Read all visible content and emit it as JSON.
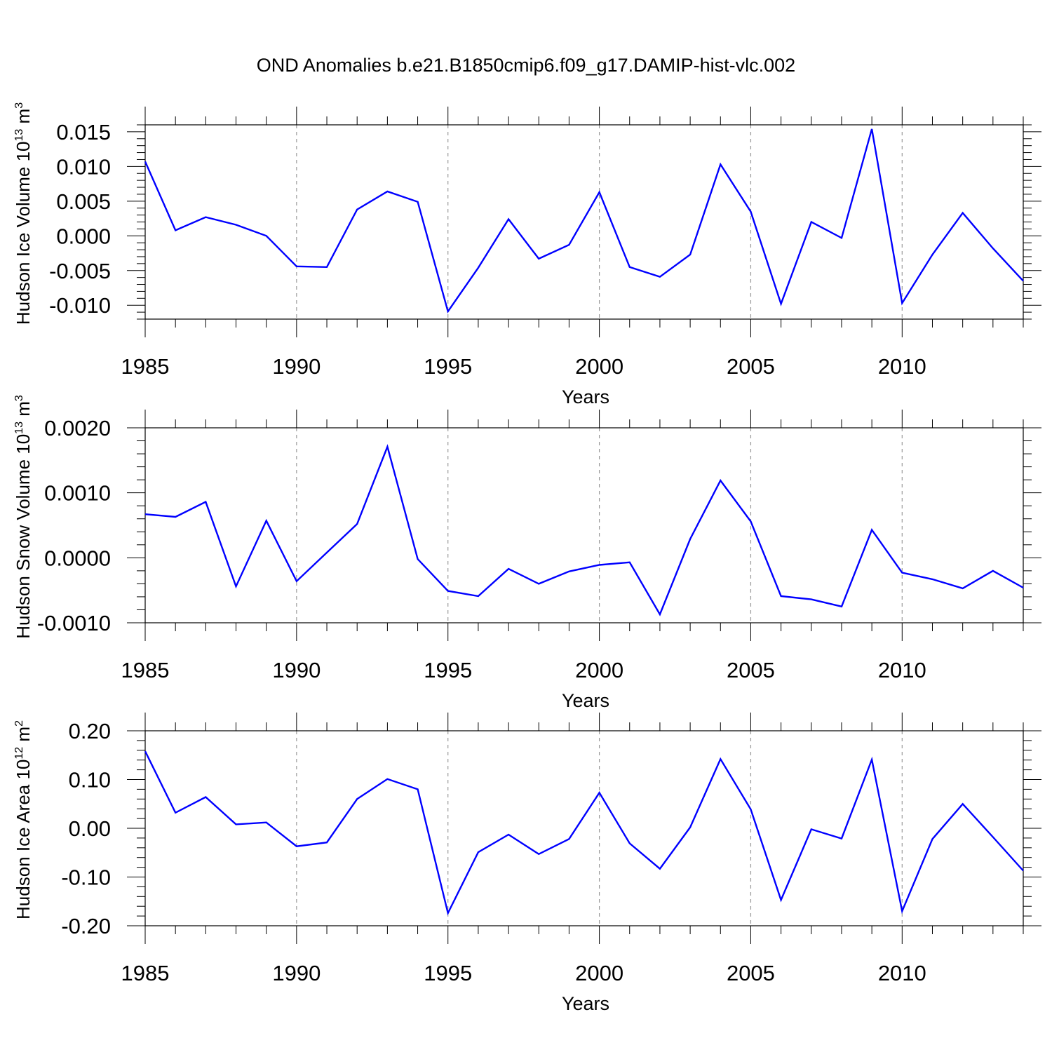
{
  "title": "OND Anomalies b.e21.B1850cmip6.f09_g17.DAMIP-hist-vlc.002",
  "colors": {
    "line": "#0000ff",
    "axis": "#000000",
    "grid": "#999999"
  },
  "chart_data": [
    {
      "type": "line",
      "xlabel": "Years",
      "ylabel": {
        "text": "Hudson Ice Volume 10",
        "sup": "13",
        "unit": " m",
        "unit_sup": "3"
      },
      "xlim": [
        1985,
        2014
      ],
      "ylim": [
        -0.012,
        0.016
      ],
      "x_ticks": [
        1985,
        1990,
        1995,
        2000,
        2005,
        2010
      ],
      "y_ticks": [
        -0.01,
        -0.005,
        0.0,
        0.005,
        0.01,
        0.015
      ],
      "y_tick_labels": [
        "-0.010",
        "-0.005",
        "0.000",
        "0.005",
        "0.010",
        "0.015"
      ],
      "x": [
        1985,
        1986,
        1987,
        1988,
        1989,
        1990,
        1991,
        1992,
        1993,
        1994,
        1995,
        1996,
        1997,
        1998,
        1999,
        2000,
        2001,
        2002,
        2003,
        2004,
        2005,
        2006,
        2007,
        2008,
        2009,
        2010,
        2011,
        2012,
        2013,
        2014
      ],
      "values": [
        0.0107,
        0.0008,
        0.0027,
        0.0016,
        0.0,
        -0.0044,
        -0.0045,
        0.0038,
        0.0064,
        0.0049,
        -0.0109,
        -0.0046,
        0.0024,
        -0.0033,
        -0.0013,
        0.0063,
        -0.0045,
        -0.0059,
        -0.0027,
        0.0103,
        0.0035,
        -0.0098,
        0.002,
        -0.0003,
        0.0154,
        -0.0097,
        -0.0027,
        0.0033,
        -0.0018,
        -0.0065
      ]
    },
    {
      "type": "line",
      "xlabel": "Years",
      "ylabel": {
        "text": "Hudson Snow Volume 10",
        "sup": "13",
        "unit": " m",
        "unit_sup": "3"
      },
      "xlim": [
        1985,
        2014
      ],
      "ylim": [
        -0.001,
        0.002
      ],
      "x_ticks": [
        1985,
        1990,
        1995,
        2000,
        2005,
        2010
      ],
      "y_ticks": [
        -0.001,
        0.0,
        0.001,
        0.002
      ],
      "y_tick_labels": [
        "-0.0010",
        "0.0000",
        "0.0010",
        "0.0020"
      ],
      "x": [
        1985,
        1986,
        1987,
        1988,
        1989,
        1990,
        1991,
        1992,
        1993,
        1994,
        1995,
        1996,
        1997,
        1998,
        1999,
        2000,
        2001,
        2002,
        2003,
        2004,
        2005,
        2006,
        2007,
        2008,
        2009,
        2010,
        2011,
        2012,
        2013,
        2014
      ],
      "values": [
        0.00067,
        0.00063,
        0.00086,
        -0.00044,
        0.00057,
        -0.00036,
        8e-05,
        0.00052,
        0.00171,
        -2e-05,
        -0.00051,
        -0.00059,
        -0.00017,
        -0.0004,
        -0.00021,
        -0.00011,
        -7e-05,
        -0.00087,
        0.00029,
        0.00119,
        0.00056,
        -0.00059,
        -0.00064,
        -0.00075,
        0.00043,
        -0.00023,
        -0.00033,
        -0.00047,
        -0.0002,
        -0.00046
      ]
    },
    {
      "type": "line",
      "xlabel": "Years",
      "ylabel": {
        "text": "Hudson Ice Area 10",
        "sup": "12",
        "unit": " m",
        "unit_sup": "2"
      },
      "xlim": [
        1985,
        2014
      ],
      "ylim": [
        -0.2,
        0.2
      ],
      "x_ticks": [
        1985,
        1990,
        1995,
        2000,
        2005,
        2010
      ],
      "y_ticks": [
        -0.2,
        -0.1,
        0.0,
        0.1,
        0.2
      ],
      "y_tick_labels": [
        "-0.20",
        "-0.10",
        "0.00",
        "0.10",
        "0.20"
      ],
      "x": [
        1985,
        1986,
        1987,
        1988,
        1989,
        1990,
        1991,
        1992,
        1993,
        1994,
        1995,
        1996,
        1997,
        1998,
        1999,
        2000,
        2001,
        2002,
        2003,
        2004,
        2005,
        2006,
        2007,
        2008,
        2009,
        2010,
        2011,
        2012,
        2013,
        2014
      ],
      "values": [
        0.158,
        0.032,
        0.064,
        0.008,
        0.012,
        -0.037,
        -0.029,
        0.06,
        0.101,
        0.08,
        -0.174,
        -0.049,
        -0.013,
        -0.053,
        -0.022,
        0.073,
        -0.031,
        -0.083,
        0.002,
        0.142,
        0.039,
        -0.147,
        -0.002,
        -0.021,
        0.141,
        -0.17,
        -0.022,
        0.05,
        -0.018,
        -0.087
      ]
    }
  ]
}
